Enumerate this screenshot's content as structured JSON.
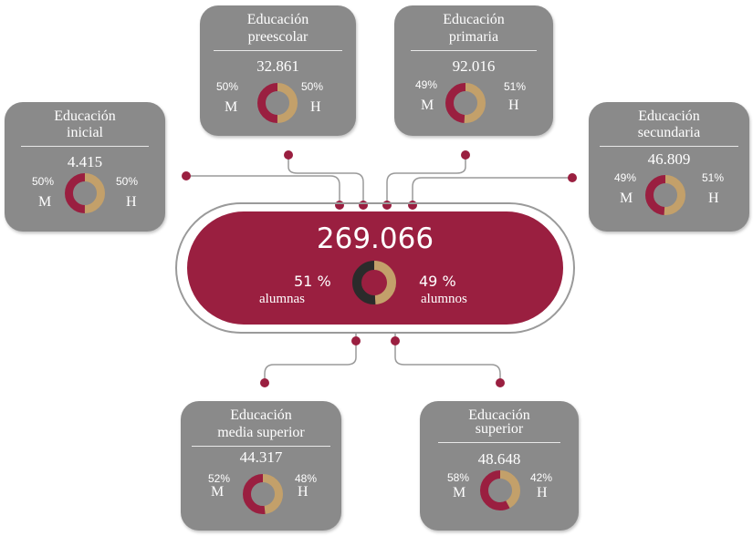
{
  "total": {
    "count": "269.066",
    "female_pct": "51 %",
    "female_label": "alumnas",
    "male_pct": "49 %",
    "male_label": "alumnos",
    "female_share": 51,
    "male_share": 49
  },
  "levels": [
    {
      "key": "inicial",
      "title1": "Educación",
      "title2": "inicial",
      "count": "4.415",
      "m_pct": "50%",
      "h_pct": "50%",
      "m_share": 50,
      "m_label": "M",
      "h_label": "H"
    },
    {
      "key": "preescolar",
      "title1": "Educación",
      "title2": "preescolar",
      "count": "32.861",
      "m_pct": "50%",
      "h_pct": "50%",
      "m_share": 50,
      "m_label": "M",
      "h_label": "H"
    },
    {
      "key": "primaria",
      "title1": "Educación",
      "title2": "primaria",
      "count": "92.016",
      "m_pct": "49%",
      "h_pct": "51%",
      "m_share": 49,
      "m_label": "M",
      "h_label": "H"
    },
    {
      "key": "secundaria",
      "title1": "Educación",
      "title2": "secundaria",
      "count": "46.809",
      "m_pct": "49%",
      "h_pct": "51%",
      "m_share": 49,
      "m_label": "M",
      "h_label": "H"
    },
    {
      "key": "media_superior",
      "title1": "Educación",
      "title2": "media superior",
      "count": "44.317",
      "m_pct": "52%",
      "h_pct": "48%",
      "m_share": 52,
      "m_label": "M",
      "h_label": "H"
    },
    {
      "key": "superior",
      "title1": "Educación",
      "title2": "superior",
      "count": "48.648",
      "m_pct": "58%",
      "h_pct": "42%",
      "m_share": 58,
      "m_label": "M",
      "h_label": "H"
    }
  ],
  "colors": {
    "female": "#9a1f40",
    "male": "#c3a06a",
    "center_female": "#2b2b2b",
    "card_bg": "#8a8a8a",
    "connector": "#9a9a9a",
    "dot": "#9a1f40"
  }
}
